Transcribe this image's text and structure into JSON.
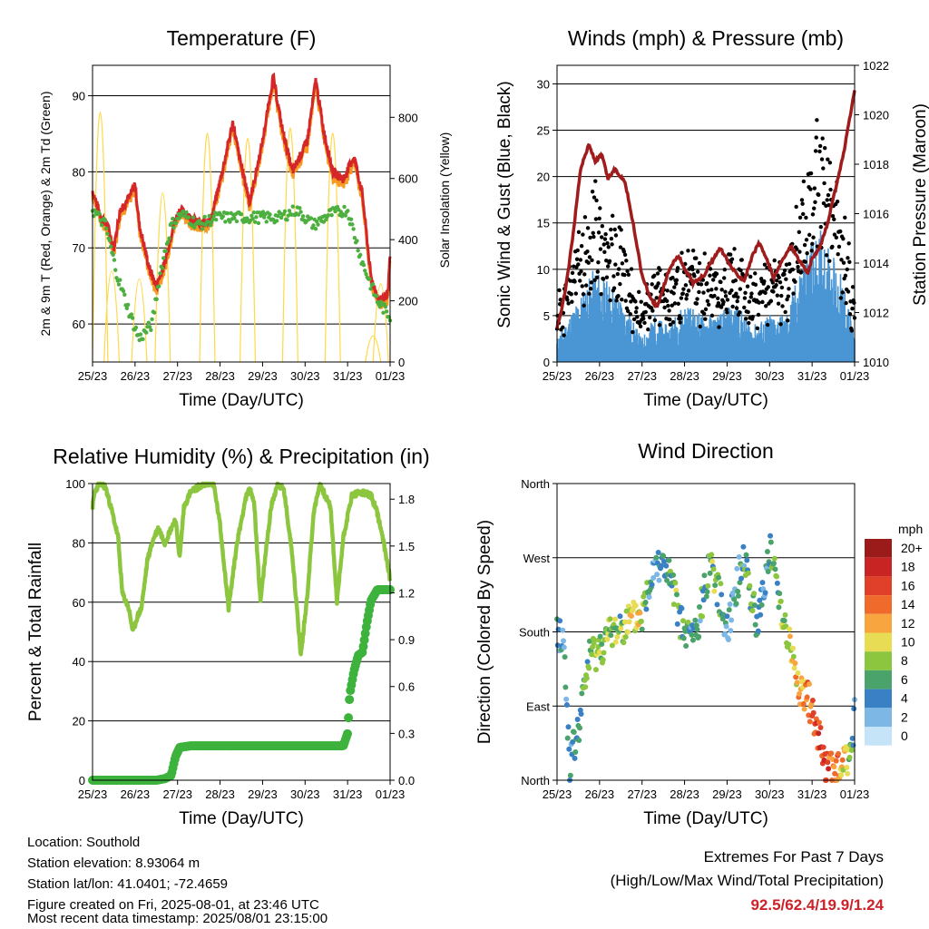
{
  "days": [
    "25/23",
    "26/23",
    "27/23",
    "28/23",
    "29/23",
    "30/23",
    "31/23",
    "01/23"
  ],
  "xlabel": "Time (Day/UTC)",
  "panels": {
    "temperature": {
      "title": "Temperature (F)",
      "ylabel_left": "2m & 9m T (Red, Orange) & 2m Td (Green)",
      "ylabel_right": "Solar Insolation (Yellow)",
      "left_ticks": [
        60,
        70,
        80,
        90
      ],
      "left_range": [
        55,
        94
      ],
      "right_ticks": [
        0,
        200,
        400,
        600,
        800
      ],
      "right_range": [
        0,
        970
      ],
      "colors": {
        "t2m": "#d62728",
        "t9m": "#f59a23",
        "td": "#4caf3f",
        "solar": "#ffd84a"
      }
    },
    "winds": {
      "title": "Winds (mph) & Pressure (mb)",
      "ylabel_left": "Sonic Wind & Gust (Blue, Black)",
      "ylabel_right": "Station Pressure (Maroon)",
      "left_ticks": [
        0,
        5,
        10,
        15,
        20,
        25,
        30
      ],
      "left_range": [
        0,
        32
      ],
      "right_ticks": [
        1010,
        1012,
        1014,
        1016,
        1018,
        1020,
        1022
      ],
      "right_range": [
        1010,
        1022
      ],
      "colors": {
        "wind": "#4a96d4",
        "gust": "#000000",
        "pressure": "#a01c1c"
      }
    },
    "humidity": {
      "title": "Relative Humidity (%) & Precipitation (in)",
      "ylabel_left": "Percent & Total Rainfall",
      "left_ticks": [
        0,
        20,
        40,
        60,
        80,
        100
      ],
      "left_range": [
        0,
        100
      ],
      "right_ticks": [
        "0.0",
        "0.3",
        "0.6",
        "0.9",
        "1.2",
        "1.5",
        "1.8"
      ],
      "right_range": [
        0,
        1.9
      ],
      "colors": {
        "rh": "#8cc63f",
        "precip": "#3db23d"
      }
    },
    "direction": {
      "title": "Wind Direction",
      "ylabel_left": "Direction (Colored By Speed)",
      "dir_ticks": [
        "North",
        "East",
        "South",
        "West",
        "North"
      ],
      "legend_title": "mph",
      "legend_labels": [
        "20+",
        "18",
        "16",
        "14",
        "12",
        "10",
        "8",
        "6",
        "4",
        "2",
        "0"
      ],
      "legend_colors": [
        "#9b1a1a",
        "#c92424",
        "#e0402a",
        "#f06a2c",
        "#f9a53f",
        "#e8dc55",
        "#8cc63f",
        "#4aa36b",
        "#3a80c4",
        "#7cb7e6",
        "#c6e4f8"
      ]
    }
  },
  "chart_data": [
    {
      "type": "line",
      "title": "Temperature (F)",
      "x": [
        "25/23",
        "26/23",
        "27/23",
        "28/23",
        "29/23",
        "30/23",
        "31/23",
        "01/23"
      ],
      "series": [
        {
          "name": "2m T (Red)",
          "values": [
            77.5,
            71,
            70,
            86.5,
            92.5,
            92,
            83,
            69
          ]
        },
        {
          "name": "9m T (Orange)",
          "values": [
            77,
            71,
            70,
            85.5,
            91,
            91,
            82,
            69
          ]
        },
        {
          "name": "2m Td (Green)",
          "values": [
            75,
            57,
            74,
            74,
            74,
            74,
            73,
            60
          ]
        },
        {
          "name": "Solar Insolation (Yellow)",
          "values": [
            0,
            0,
            0,
            0,
            0,
            0,
            0,
            0
          ]
        }
      ],
      "ylim": [
        55,
        94
      ]
    },
    {
      "type": "line",
      "title": "Winds (mph) & Pressure (mb)",
      "x": [
        "25/23",
        "26/23",
        "27/23",
        "28/23",
        "29/23",
        "30/23",
        "31/23",
        "01/23"
      ],
      "series": [
        {
          "name": "Sonic Wind (Blue)",
          "values": [
            2,
            8,
            4,
            4,
            5,
            3,
            10,
            1
          ]
        },
        {
          "name": "Gust (Black)",
          "values": [
            4,
            14,
            9,
            7,
            8,
            6,
            18,
            2
          ]
        },
        {
          "name": "Station Pressure (Maroon)",
          "values": [
            1011.4,
            1016.2,
            1012.3,
            1013.5,
            1014.3,
            1013.6,
            1014.4,
            1021.0
          ]
        }
      ],
      "ylim": [
        0,
        32
      ]
    },
    {
      "type": "line",
      "title": "Relative Humidity (%) & Precipitation (in)",
      "x": [
        "25/23",
        "26/23",
        "27/23",
        "28/23",
        "29/23",
        "30/23",
        "31/23",
        "01/23"
      ],
      "series": [
        {
          "name": "Relative Humidity",
          "values": [
            92,
            60,
            100,
            60,
            100,
            55,
            98,
            72
          ]
        },
        {
          "name": "Total Precipitation",
          "values": [
            0.0,
            0.0,
            0.02,
            0.22,
            0.22,
            0.22,
            0.22,
            1.24
          ]
        }
      ],
      "ylim": [
        0,
        100
      ]
    },
    {
      "type": "scatter",
      "title": "Wind Direction",
      "x": [
        "25/23",
        "26/23",
        "27/23",
        "28/23",
        "29/23",
        "30/23",
        "31/23",
        "01/23"
      ],
      "series": [
        {
          "name": "Direction (deg)",
          "values": [
            180,
            60,
            240,
            180,
            250,
            270,
            110,
            10
          ]
        }
      ],
      "ylim": [
        0,
        360
      ]
    }
  ],
  "footer": {
    "location": "Location: Southold",
    "elevation": "Station elevation: 8.93064 m",
    "latlon": "Station lat/lon: 41.0401; -72.4659",
    "created": "Figure created on Fri, 2025-08-01, at 23:46 UTC",
    "recent": "Most recent data timestamp: 2025/08/01 23:15:00"
  },
  "extremes": {
    "line1": "Extremes For Past 7 Days",
    "line2": "(High/Low/Max Wind/Total Precipitation)",
    "values": "92.5/62.4/19.9/1.24",
    "value_color": "#cc2229"
  }
}
